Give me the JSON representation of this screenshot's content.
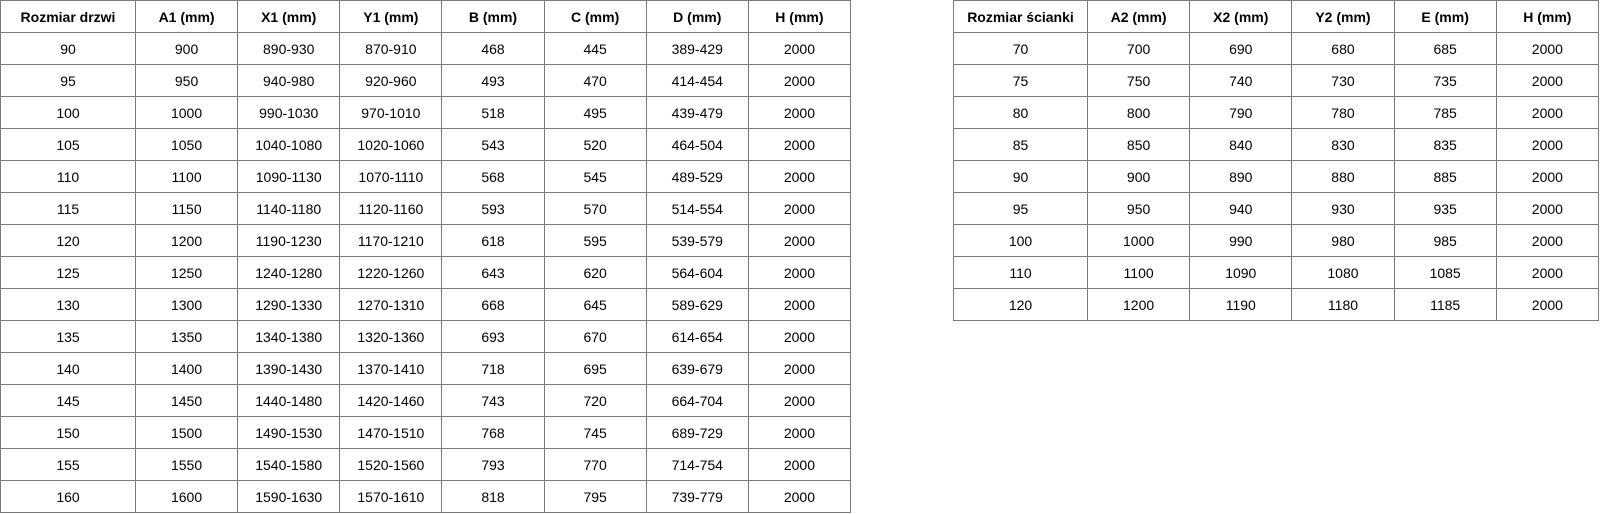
{
  "door_table": {
    "headers": [
      "Rozmiar drzwi",
      "A1 (mm)",
      "X1 (mm)",
      "Y1 (mm)",
      "B (mm)",
      "C (mm)",
      "D (mm)",
      "H (mm)"
    ],
    "rows": [
      [
        "90",
        "900",
        "890-930",
        "870-910",
        "468",
        "445",
        "389-429",
        "2000"
      ],
      [
        "95",
        "950",
        "940-980",
        "920-960",
        "493",
        "470",
        "414-454",
        "2000"
      ],
      [
        "100",
        "1000",
        "990-1030",
        "970-1010",
        "518",
        "495",
        "439-479",
        "2000"
      ],
      [
        "105",
        "1050",
        "1040-1080",
        "1020-1060",
        "543",
        "520",
        "464-504",
        "2000"
      ],
      [
        "110",
        "1100",
        "1090-1130",
        "1070-1110",
        "568",
        "545",
        "489-529",
        "2000"
      ],
      [
        "115",
        "1150",
        "1140-1180",
        "1120-1160",
        "593",
        "570",
        "514-554",
        "2000"
      ],
      [
        "120",
        "1200",
        "1190-1230",
        "1170-1210",
        "618",
        "595",
        "539-579",
        "2000"
      ],
      [
        "125",
        "1250",
        "1240-1280",
        "1220-1260",
        "643",
        "620",
        "564-604",
        "2000"
      ],
      [
        "130",
        "1300",
        "1290-1330",
        "1270-1310",
        "668",
        "645",
        "589-629",
        "2000"
      ],
      [
        "135",
        "1350",
        "1340-1380",
        "1320-1360",
        "693",
        "670",
        "614-654",
        "2000"
      ],
      [
        "140",
        "1400",
        "1390-1430",
        "1370-1410",
        "718",
        "695",
        "639-679",
        "2000"
      ],
      [
        "145",
        "1450",
        "1440-1480",
        "1420-1460",
        "743",
        "720",
        "664-704",
        "2000"
      ],
      [
        "150",
        "1500",
        "1490-1530",
        "1470-1510",
        "768",
        "745",
        "689-729",
        "2000"
      ],
      [
        "155",
        "1550",
        "1540-1580",
        "1520-1560",
        "793",
        "770",
        "714-754",
        "2000"
      ],
      [
        "160",
        "1600",
        "1590-1630",
        "1570-1610",
        "818",
        "795",
        "739-779",
        "2000"
      ]
    ]
  },
  "wall_table": {
    "headers": [
      "Rozmiar ścianki",
      "A2 (mm)",
      "X2 (mm)",
      "Y2 (mm)",
      "E (mm)",
      "H (mm)"
    ],
    "rows": [
      [
        "70",
        "700",
        "690",
        "680",
        "685",
        "2000"
      ],
      [
        "75",
        "750",
        "740",
        "730",
        "735",
        "2000"
      ],
      [
        "80",
        "800",
        "790",
        "780",
        "785",
        "2000"
      ],
      [
        "85",
        "850",
        "840",
        "830",
        "835",
        "2000"
      ],
      [
        "90",
        "900",
        "890",
        "880",
        "885",
        "2000"
      ],
      [
        "95",
        "950",
        "940",
        "930",
        "935",
        "2000"
      ],
      [
        "100",
        "1000",
        "990",
        "980",
        "985",
        "2000"
      ],
      [
        "110",
        "1100",
        "1090",
        "1080",
        "1085",
        "2000"
      ],
      [
        "120",
        "1200",
        "1190",
        "1180",
        "1185",
        "2000"
      ]
    ]
  }
}
